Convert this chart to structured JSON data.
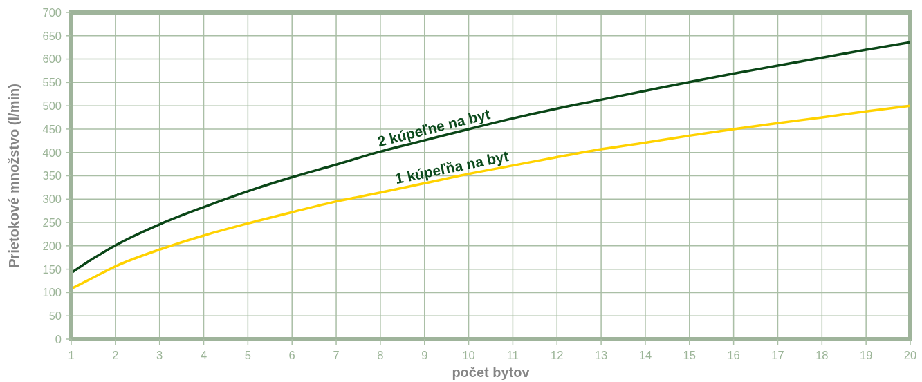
{
  "chart_data": {
    "type": "line",
    "xlabel": "počet bytov",
    "ylabel": "Prietokové množstvo (l/min)",
    "x": [
      1,
      1.5,
      2,
      3,
      4,
      5,
      6,
      7,
      8,
      9,
      10,
      11,
      12,
      13,
      14,
      15,
      16,
      17,
      18,
      19,
      20
    ],
    "series": [
      {
        "name": "2 kúpeľne na byt",
        "color": "#0a4617",
        "values": [
          142,
          173,
          201,
          246,
          283,
          317,
          347,
          374,
          402,
          426,
          450,
          473,
          494,
          513,
          532,
          551,
          569,
          586,
          603,
          620,
          636
        ]
      },
      {
        "name": "1 kúpeľňa na byt",
        "color": "#ffd200",
        "values": [
          108,
          132,
          156,
          192,
          222,
          248,
          272,
          295,
          314,
          334,
          354,
          372,
          390,
          407,
          421,
          436,
          450,
          463,
          475,
          488,
          500
        ]
      }
    ],
    "xlim": [
      1,
      20
    ],
    "xticks": [
      1,
      2,
      3,
      4,
      5,
      6,
      7,
      8,
      9,
      10,
      11,
      12,
      13,
      14,
      15,
      16,
      17,
      18,
      19,
      20
    ],
    "ylim": [
      0,
      700
    ],
    "yticks": [
      0,
      50,
      100,
      150,
      200,
      250,
      300,
      350,
      400,
      450,
      500,
      550,
      600,
      650,
      700
    ],
    "grid": true
  }
}
